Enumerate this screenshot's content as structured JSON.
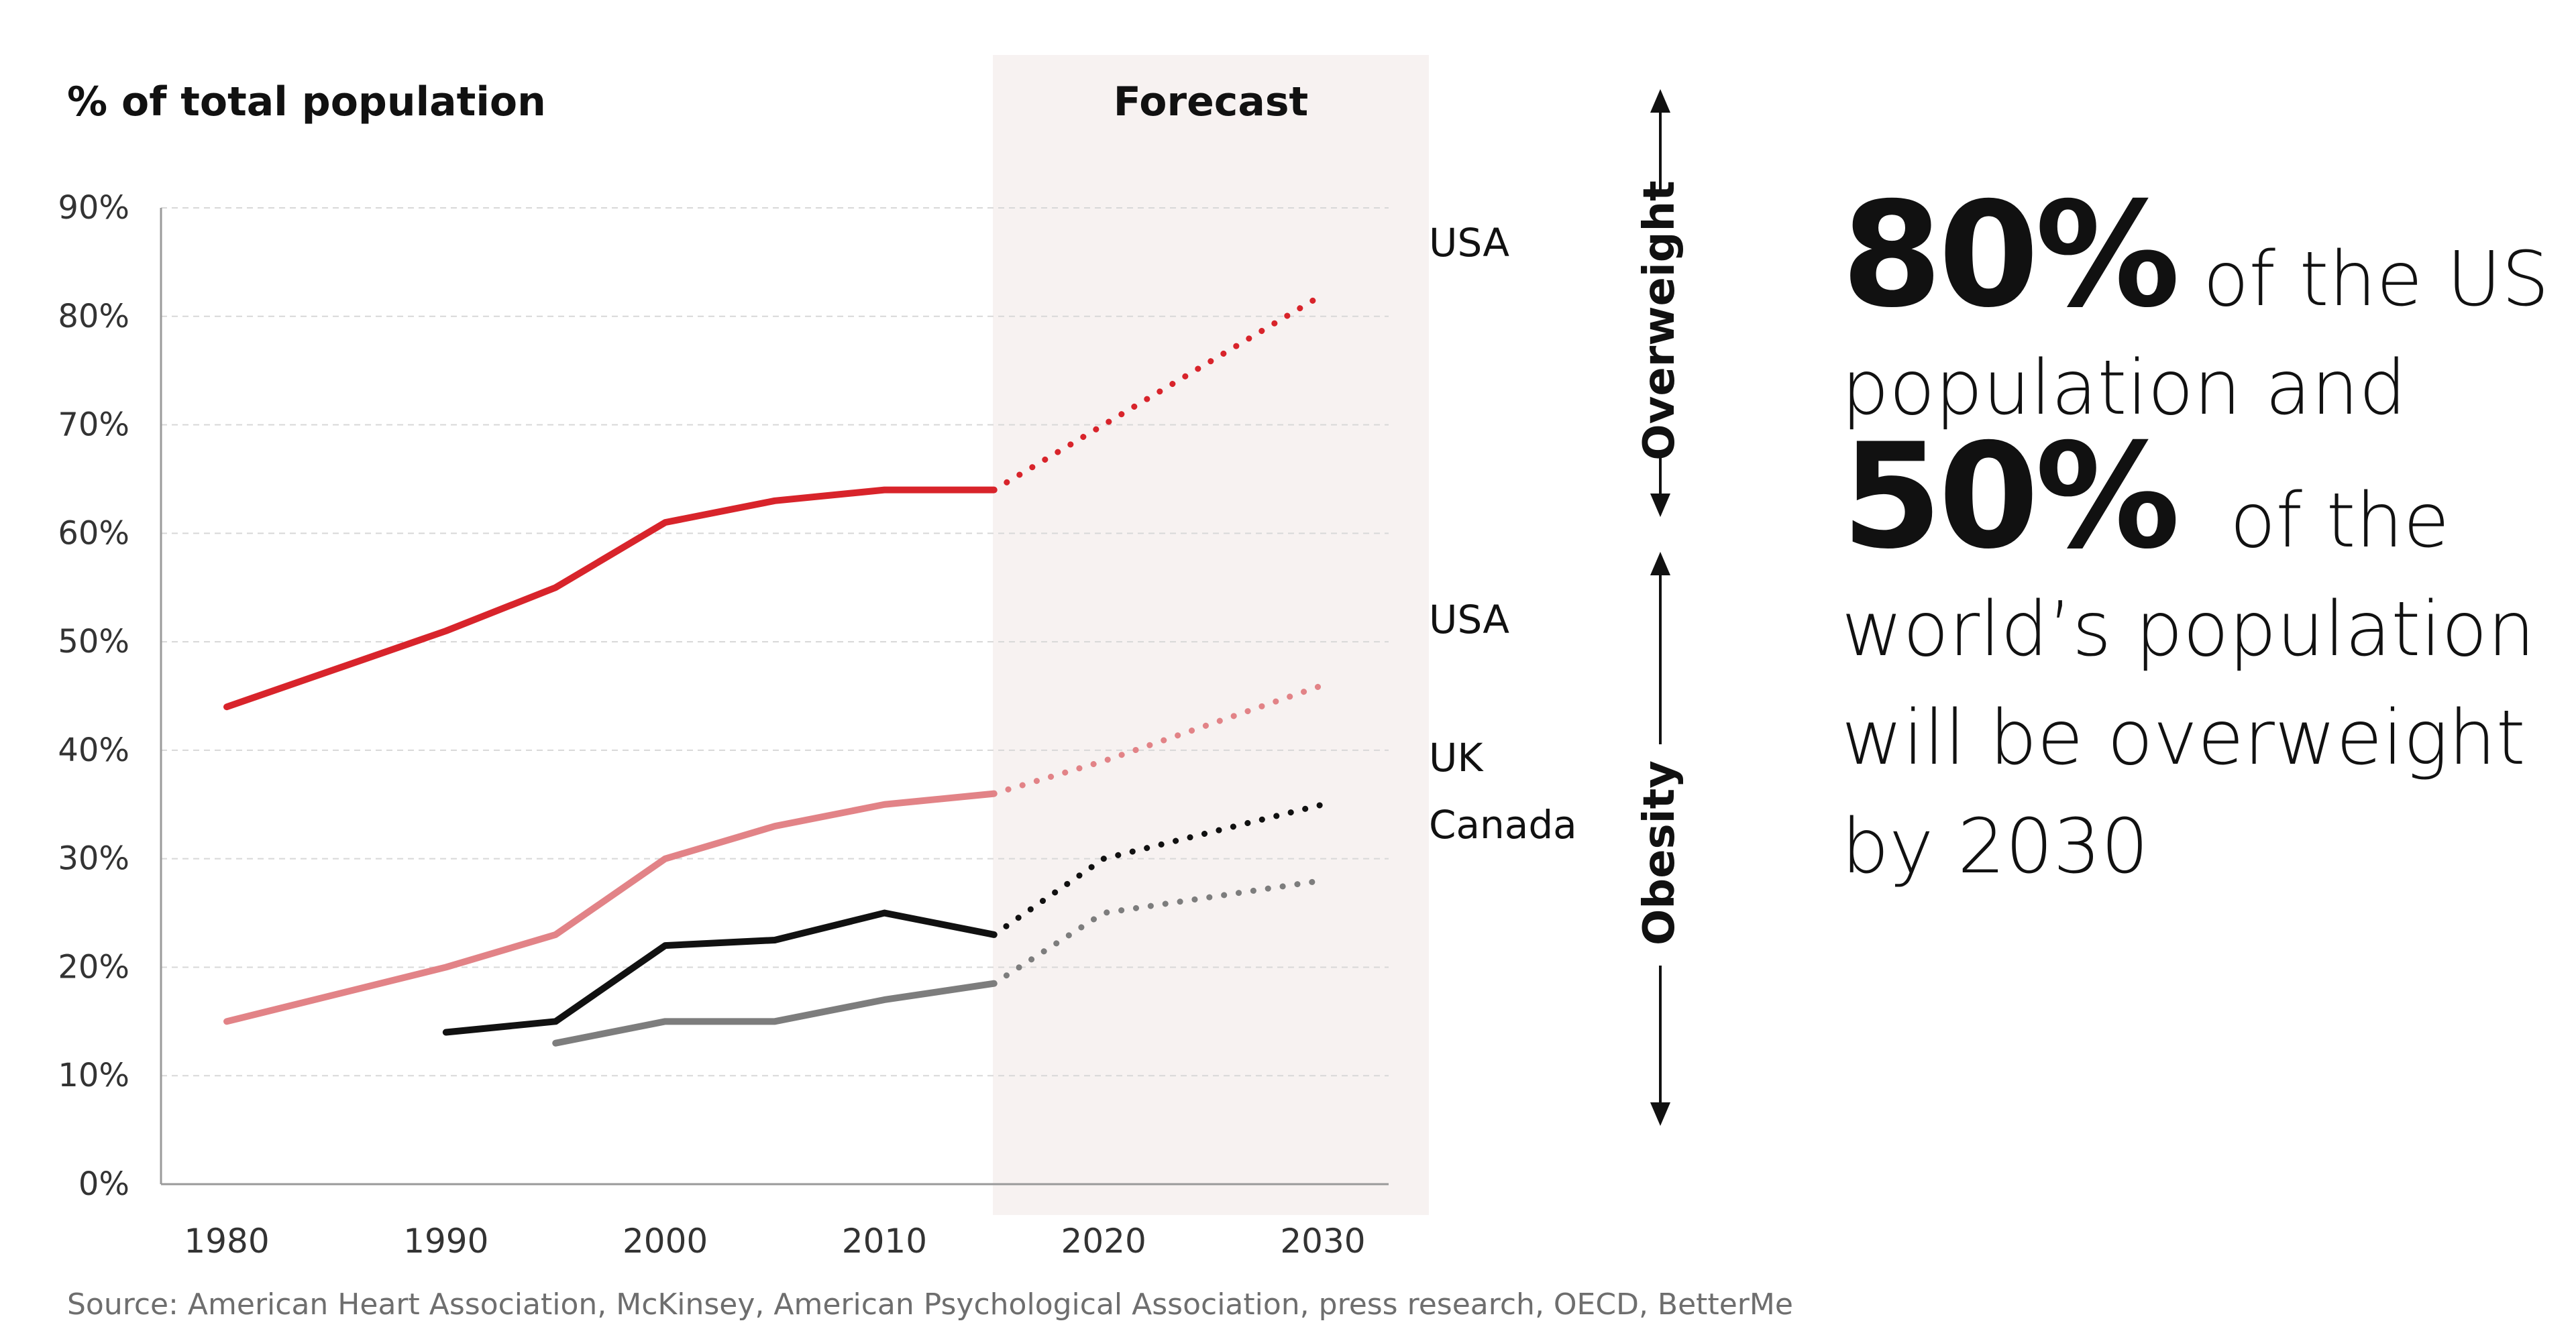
{
  "chart_data": {
    "type": "line",
    "title": "% of total population",
    "forecast_label": "Forecast",
    "forecast_start": 2015,
    "xlim": [
      1977,
      2033
    ],
    "ylim": [
      0,
      90
    ],
    "x_ticks": [
      1980,
      1990,
      2000,
      2010,
      2020,
      2030
    ],
    "y_ticks": [
      0,
      10,
      20,
      30,
      40,
      50,
      60,
      70,
      80,
      90
    ],
    "y_tick_labels": [
      "0%",
      "10%",
      "20%",
      "30%",
      "40%",
      "50%",
      "60%",
      "70%",
      "80%",
      "90%"
    ],
    "grid": true,
    "series": [
      {
        "group": "Overweight",
        "label": "USA",
        "color": "#d8242b",
        "x": [
          1980,
          1990,
          1995,
          2000,
          2005,
          2010,
          2015
        ],
        "values": [
          44,
          51,
          55,
          61,
          63,
          64,
          64
        ],
        "forecast_x": [
          2015,
          2020,
          2030
        ],
        "forecast_values": [
          64,
          70,
          82
        ]
      },
      {
        "group": "Obesity",
        "label": "USA",
        "color": "#e28387",
        "x": [
          1980,
          1990,
          1995,
          2000,
          2005,
          2010,
          2015
        ],
        "values": [
          15,
          20,
          23,
          30,
          33,
          35,
          36
        ],
        "forecast_x": [
          2015,
          2020,
          2030
        ],
        "forecast_values": [
          36,
          39,
          46
        ]
      },
      {
        "group": "Obesity",
        "label": "UK",
        "color": "#111111",
        "x": [
          1990,
          1995,
          2000,
          2005,
          2010,
          2015
        ],
        "values": [
          14,
          15,
          22,
          22.5,
          25,
          23
        ],
        "forecast_x": [
          2015,
          2020,
          2030
        ],
        "forecast_values": [
          23,
          30,
          35
        ]
      },
      {
        "group": "Obesity",
        "label": "Canada",
        "color": "#7d7d7d",
        "x": [
          1995,
          2000,
          2005,
          2010,
          2015
        ],
        "values": [
          13,
          15,
          15,
          17,
          18.5
        ],
        "forecast_x": [
          2015,
          2020,
          2030
        ],
        "forecast_values": [
          18.5,
          25,
          28
        ]
      }
    ],
    "side_labels": {
      "overweight": "Overweight",
      "obesity": "Obesity"
    }
  },
  "headline": {
    "stat1": "80%",
    "text1": "of the US",
    "text2": "population and",
    "stat2": "50%",
    "text3": "of the",
    "text4": "world’s population",
    "text5": "will be overweight",
    "text6": "by 2030"
  },
  "source": "Source: American Heart Association, McKinsey, American Psychological Association, press research, OECD, BetterMe",
  "colors": {
    "forecast_band": "#f7f2f1",
    "grid": "#d8d8d8",
    "axis": "#9a9a9a"
  }
}
